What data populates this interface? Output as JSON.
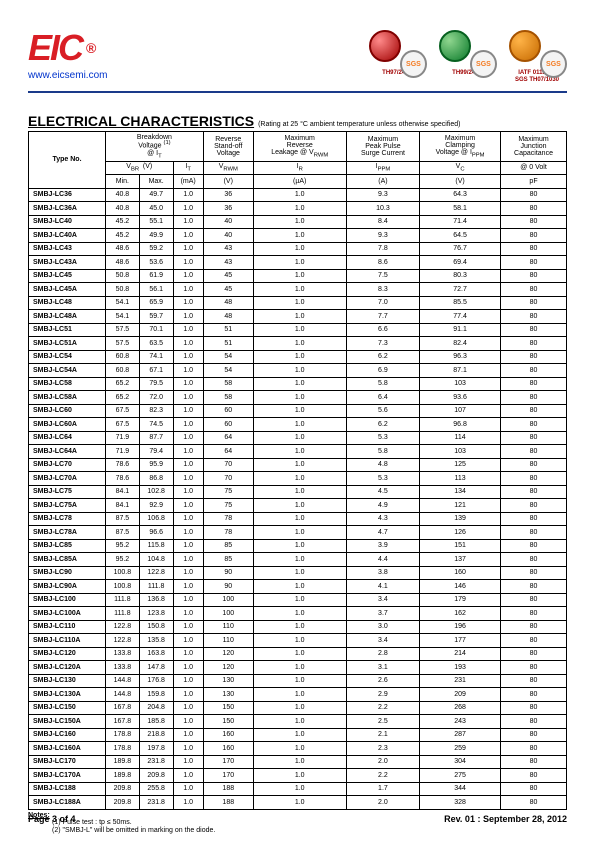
{
  "header": {
    "logo_text": "EIC",
    "url": "www.eicsemi.com",
    "certs": [
      {
        "label": "TH97/2478",
        "color": "red"
      },
      {
        "label": "TH99/2479",
        "color": "green"
      },
      {
        "label": "IATF 0113886\nSGS TH07/1030",
        "color": "orange"
      }
    ]
  },
  "title": "ELECTRICAL CHARACTERISTICS",
  "title_note": "(Rating at 25 °C ambient temperature unless otherwise specified)",
  "table": {
    "head": {
      "type_no": "Type No.",
      "breakdown": "Breakdown\nVoltage",
      "breakdown_sup": "(1)",
      "at_it": "@ I",
      "at_it_sub": "T",
      "standoff": "Reverse\nStand-off\nVoltage",
      "leakage": "Maximum\nReverse\nLeakage @ V",
      "leakage_sub": "RWM",
      "peak": "Maximum\nPeak Pulse\nSurge Current",
      "clamp": "Maximum\nClamping\nVoltage @ I",
      "clamp_sub": "PPM",
      "cap": "Maximum\nJunction\nCapacitance",
      "cap_at": "@ 0 Volt",
      "vbr": "V",
      "vbr_sub": "BR",
      "vbr_unit": "(V)",
      "it": "I",
      "it_sub": "T",
      "vrwm": "V",
      "vrwm_sub": "RWM",
      "ir": "I",
      "ir_sub": "R",
      "ippm": "I",
      "ippm_sub": "PPM",
      "vc": "V",
      "vc_sub": "C",
      "min": "Min.",
      "max": "Max.",
      "ma": "(mA)",
      "u_v": "(V)",
      "u_ua": "(µA)",
      "u_a": "(A)",
      "u_pf": "pF"
    },
    "rows": [
      [
        "SMBJ-LC36",
        "40.8",
        "49.7",
        "1.0",
        "36",
        "1.0",
        "9.3",
        "64.3",
        "80"
      ],
      [
        "SMBJ-LC36A",
        "40.8",
        "45.0",
        "1.0",
        "36",
        "1.0",
        "10.3",
        "58.1",
        "80"
      ],
      [
        "SMBJ-LC40",
        "45.2",
        "55.1",
        "1.0",
        "40",
        "1.0",
        "8.4",
        "71.4",
        "80"
      ],
      [
        "SMBJ-LC40A",
        "45.2",
        "49.9",
        "1.0",
        "40",
        "1.0",
        "9.3",
        "64.5",
        "80"
      ],
      [
        "SMBJ-LC43",
        "48.6",
        "59.2",
        "1.0",
        "43",
        "1.0",
        "7.8",
        "76.7",
        "80"
      ],
      [
        "SMBJ-LC43A",
        "48.6",
        "53.6",
        "1.0",
        "43",
        "1.0",
        "8.6",
        "69.4",
        "80"
      ],
      [
        "SMBJ-LC45",
        "50.8",
        "61.9",
        "1.0",
        "45",
        "1.0",
        "7.5",
        "80.3",
        "80"
      ],
      [
        "SMBJ-LC45A",
        "50.8",
        "56.1",
        "1.0",
        "45",
        "1.0",
        "8.3",
        "72.7",
        "80"
      ],
      [
        "SMBJ-LC48",
        "54.1",
        "65.9",
        "1.0",
        "48",
        "1.0",
        "7.0",
        "85.5",
        "80"
      ],
      [
        "SMBJ-LC48A",
        "54.1",
        "59.7",
        "1.0",
        "48",
        "1.0",
        "7.7",
        "77.4",
        "80"
      ],
      [
        "SMBJ-LC51",
        "57.5",
        "70.1",
        "1.0",
        "51",
        "1.0",
        "6.6",
        "91.1",
        "80"
      ],
      [
        "SMBJ-LC51A",
        "57.5",
        "63.5",
        "1.0",
        "51",
        "1.0",
        "7.3",
        "82.4",
        "80"
      ],
      [
        "SMBJ-LC54",
        "60.8",
        "74.1",
        "1.0",
        "54",
        "1.0",
        "6.2",
        "96.3",
        "80"
      ],
      [
        "SMBJ-LC54A",
        "60.8",
        "67.1",
        "1.0",
        "54",
        "1.0",
        "6.9",
        "87.1",
        "80"
      ],
      [
        "SMBJ-LC58",
        "65.2",
        "79.5",
        "1.0",
        "58",
        "1.0",
        "5.8",
        "103",
        "80"
      ],
      [
        "SMBJ-LC58A",
        "65.2",
        "72.0",
        "1.0",
        "58",
        "1.0",
        "6.4",
        "93.6",
        "80"
      ],
      [
        "SMBJ-LC60",
        "67.5",
        "82.3",
        "1.0",
        "60",
        "1.0",
        "5.6",
        "107",
        "80"
      ],
      [
        "SMBJ-LC60A",
        "67.5",
        "74.5",
        "1.0",
        "60",
        "1.0",
        "6.2",
        "96.8",
        "80"
      ],
      [
        "SMBJ-LC64",
        "71.9",
        "87.7",
        "1.0",
        "64",
        "1.0",
        "5.3",
        "114",
        "80"
      ],
      [
        "SMBJ-LC64A",
        "71.9",
        "79.4",
        "1.0",
        "64",
        "1.0",
        "5.8",
        "103",
        "80"
      ],
      [
        "SMBJ-LC70",
        "78.6",
        "95.9",
        "1.0",
        "70",
        "1.0",
        "4.8",
        "125",
        "80"
      ],
      [
        "SMBJ-LC70A",
        "78.6",
        "86.8",
        "1.0",
        "70",
        "1.0",
        "5.3",
        "113",
        "80"
      ],
      [
        "SMBJ-LC75",
        "84.1",
        "102.8",
        "1.0",
        "75",
        "1.0",
        "4.5",
        "134",
        "80"
      ],
      [
        "SMBJ-LC75A",
        "84.1",
        "92.9",
        "1.0",
        "75",
        "1.0",
        "4.9",
        "121",
        "80"
      ],
      [
        "SMBJ-LC78",
        "87.5",
        "106.8",
        "1.0",
        "78",
        "1.0",
        "4.3",
        "139",
        "80"
      ],
      [
        "SMBJ-LC78A",
        "87.5",
        "96.6",
        "1.0",
        "78",
        "1.0",
        "4.7",
        "126",
        "80"
      ],
      [
        "SMBJ-LC85",
        "95.2",
        "115.8",
        "1.0",
        "85",
        "1.0",
        "3.9",
        "151",
        "80"
      ],
      [
        "SMBJ-LC85A",
        "95.2",
        "104.8",
        "1.0",
        "85",
        "1.0",
        "4.4",
        "137",
        "80"
      ],
      [
        "SMBJ-LC90",
        "100.8",
        "122.8",
        "1.0",
        "90",
        "1.0",
        "3.8",
        "160",
        "80"
      ],
      [
        "SMBJ-LC90A",
        "100.8",
        "111.8",
        "1.0",
        "90",
        "1.0",
        "4.1",
        "146",
        "80"
      ],
      [
        "SMBJ-LC100",
        "111.8",
        "136.8",
        "1.0",
        "100",
        "1.0",
        "3.4",
        "179",
        "80"
      ],
      [
        "SMBJ-LC100A",
        "111.8",
        "123.8",
        "1.0",
        "100",
        "1.0",
        "3.7",
        "162",
        "80"
      ],
      [
        "SMBJ-LC110",
        "122.8",
        "150.8",
        "1.0",
        "110",
        "1.0",
        "3.0",
        "196",
        "80"
      ],
      [
        "SMBJ-LC110A",
        "122.8",
        "135.8",
        "1.0",
        "110",
        "1.0",
        "3.4",
        "177",
        "80"
      ],
      [
        "SMBJ-LC120",
        "133.8",
        "163.8",
        "1.0",
        "120",
        "1.0",
        "2.8",
        "214",
        "80"
      ],
      [
        "SMBJ-LC120A",
        "133.8",
        "147.8",
        "1.0",
        "120",
        "1.0",
        "3.1",
        "193",
        "80"
      ],
      [
        "SMBJ-LC130",
        "144.8",
        "176.8",
        "1.0",
        "130",
        "1.0",
        "2.6",
        "231",
        "80"
      ],
      [
        "SMBJ-LC130A",
        "144.8",
        "159.8",
        "1.0",
        "130",
        "1.0",
        "2.9",
        "209",
        "80"
      ],
      [
        "SMBJ-LC150",
        "167.8",
        "204.8",
        "1.0",
        "150",
        "1.0",
        "2.2",
        "268",
        "80"
      ],
      [
        "SMBJ-LC150A",
        "167.8",
        "185.8",
        "1.0",
        "150",
        "1.0",
        "2.5",
        "243",
        "80"
      ],
      [
        "SMBJ-LC160",
        "178.8",
        "218.8",
        "1.0",
        "160",
        "1.0",
        "2.1",
        "287",
        "80"
      ],
      [
        "SMBJ-LC160A",
        "178.8",
        "197.8",
        "1.0",
        "160",
        "1.0",
        "2.3",
        "259",
        "80"
      ],
      [
        "SMBJ-LC170",
        "189.8",
        "231.8",
        "1.0",
        "170",
        "1.0",
        "2.0",
        "304",
        "80"
      ],
      [
        "SMBJ-LC170A",
        "189.8",
        "209.8",
        "1.0",
        "170",
        "1.0",
        "2.2",
        "275",
        "80"
      ],
      [
        "SMBJ-LC188",
        "209.8",
        "255.8",
        "1.0",
        "188",
        "1.0",
        "1.7",
        "344",
        "80"
      ],
      [
        "SMBJ-LC188A",
        "209.8",
        "231.8",
        "1.0",
        "188",
        "1.0",
        "2.0",
        "328",
        "80"
      ]
    ]
  },
  "notes": {
    "title": "Notes:",
    "items": [
      "(1)  Pulse test : tp ≤ 50ms.",
      "(2)  \"SMBJ-L\" will be omitted in marking on the diode."
    ]
  },
  "footer": {
    "left": "Page 3 of 4",
    "right": "Rev. 01 : September 28, 2012"
  }
}
